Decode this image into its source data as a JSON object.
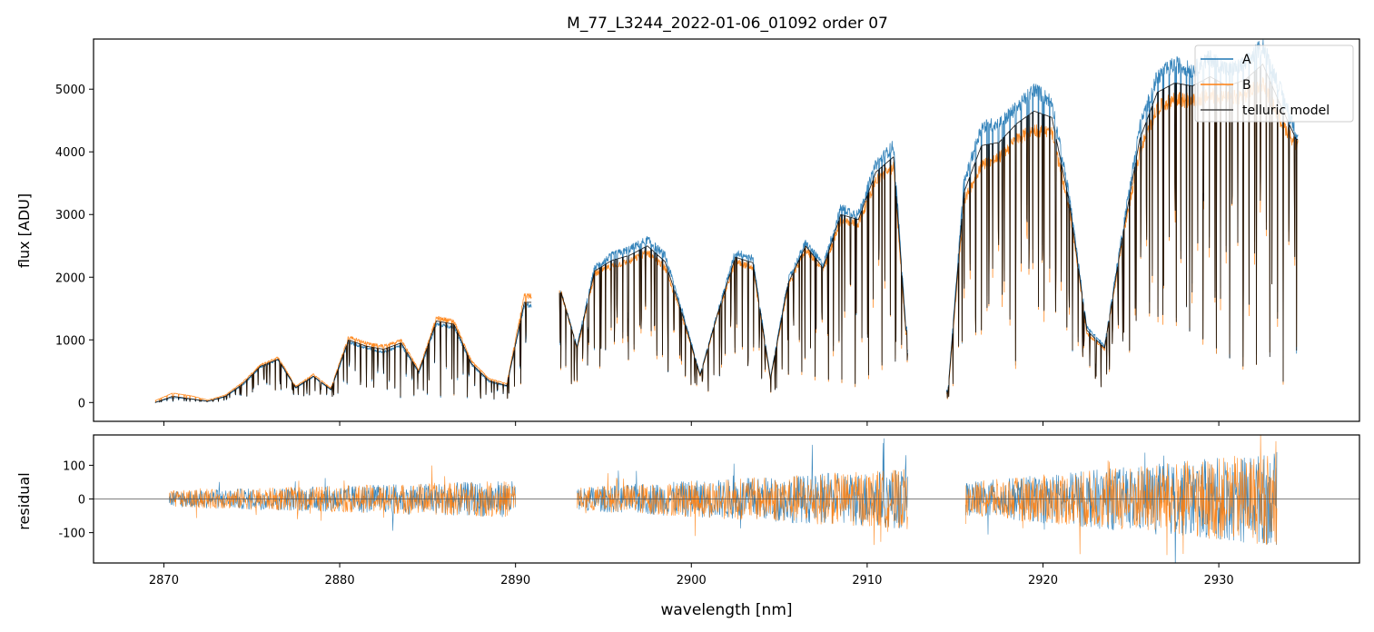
{
  "title": "M_77_L3244_2022-01-06_01092  order 07",
  "colors": {
    "A": "#1f77b4",
    "B": "#ff7f0e",
    "model": "#000000",
    "zero": "#555555"
  },
  "chart_data": [
    {
      "type": "line",
      "panel": "flux",
      "title": "M_77_L3244_2022-01-06_01092  order 07",
      "xlabel": "",
      "ylabel": "flux [ADU]",
      "xlim": [
        2866,
        2938
      ],
      "ylim": [
        -300,
        5800
      ],
      "xticks": [
        2870,
        2880,
        2890,
        2900,
        2910,
        2920,
        2930
      ],
      "yticks": [
        0,
        1000,
        2000,
        3000,
        4000,
        5000
      ],
      "legend": {
        "position": "top-right",
        "entries": [
          "A",
          "B",
          "telluric model"
        ]
      },
      "series": [
        {
          "name": "A",
          "color": "#1f77b4",
          "width": 0.8
        },
        {
          "name": "B",
          "color": "#ff7f0e",
          "width": 0.8
        },
        {
          "name": "telluric model",
          "color": "#000000",
          "width": 0.9
        }
      ],
      "segments": [
        {
          "x0": 2869.5,
          "x1": 2890.9,
          "rows": [
            [
              2869.5,
              0,
              30,
              0
            ],
            [
              2870.5,
              80,
              150,
              100
            ],
            [
              2871.5,
              60,
              110,
              60
            ],
            [
              2872.5,
              20,
              40,
              20
            ],
            [
              2873.5,
              90,
              120,
              100
            ],
            [
              2874.5,
              280,
              330,
              300
            ],
            [
              2875.5,
              560,
              600,
              580
            ],
            [
              2876.5,
              680,
              720,
              690
            ],
            [
              2877.5,
              230,
              260,
              240
            ],
            [
              2878.5,
              410,
              450,
              420
            ],
            [
              2879.5,
              200,
              230,
              210
            ],
            [
              2880.5,
              960,
              1050,
              1000
            ],
            [
              2881.5,
              870,
              950,
              900
            ],
            [
              2882.5,
              800,
              900,
              850
            ],
            [
              2883.5,
              910,
              1000,
              950
            ],
            [
              2884.5,
              470,
              520,
              490
            ],
            [
              2885.5,
              1250,
              1350,
              1300
            ],
            [
              2886.5,
              1200,
              1300,
              1250
            ],
            [
              2887.5,
              600,
              660,
              620
            ],
            [
              2888.5,
              330,
              380,
              350
            ],
            [
              2889.5,
              260,
              300,
              270
            ],
            [
              2890.5,
              1550,
              1700,
              1600
            ]
          ]
        },
        {
          "x0": 2892.5,
          "x1": 2912.3,
          "rows": [
            [
              2892.6,
              1750,
              1750,
              1750
            ],
            [
              2893.5,
              900,
              850,
              870
            ],
            [
              2894.5,
              2150,
              2050,
              2100
            ],
            [
              2895.5,
              2350,
              2180,
              2270
            ],
            [
              2896.5,
              2450,
              2250,
              2350
            ],
            [
              2897.5,
              2600,
              2400,
              2500
            ],
            [
              2898.5,
              2350,
              2150,
              2250
            ],
            [
              2899.5,
              1450,
              1350,
              1400
            ],
            [
              2900.5,
              450,
              420,
              430
            ],
            [
              2901.5,
              1450,
              1400,
              1420
            ],
            [
              2902.5,
              2400,
              2250,
              2320
            ],
            [
              2903.5,
              2300,
              2150,
              2230
            ],
            [
              2904.5,
              400,
              360,
              380
            ],
            [
              2905.5,
              1950,
              1850,
              1900
            ],
            [
              2906.5,
              2550,
              2450,
              2500
            ],
            [
              2907.5,
              2200,
              2100,
              2150
            ],
            [
              2908.5,
              3100,
              2900,
              3000
            ],
            [
              2909.5,
              3000,
              2850,
              2920
            ],
            [
              2910.5,
              3800,
              3550,
              3680
            ],
            [
              2911.5,
              4100,
              3750,
              3920
            ],
            [
              2912.2,
              1200,
              1100,
              1150
            ]
          ]
        },
        {
          "x0": 2914.5,
          "x1": 2934.5,
          "rows": [
            [
              2914.6,
              200,
              150,
              180
            ],
            [
              2915.5,
              3500,
              3200,
              3350
            ],
            [
              2916.5,
              4400,
              3800,
              4100
            ],
            [
              2917.5,
              4450,
              3900,
              4150
            ],
            [
              2918.5,
              4700,
              4200,
              4450
            ],
            [
              2919.5,
              5000,
              4350,
              4650
            ],
            [
              2920.5,
              4800,
              4300,
              4550
            ],
            [
              2921.5,
              3300,
              3100,
              3200
            ],
            [
              2922.5,
              1200,
              1100,
              1150
            ],
            [
              2923.5,
              900,
              850,
              870
            ],
            [
              2924.5,
              2700,
              2550,
              2620
            ],
            [
              2925.5,
              4400,
              4000,
              4200
            ],
            [
              2926.5,
              5200,
              4700,
              4950
            ],
            [
              2927.5,
              5400,
              4850,
              5100
            ],
            [
              2928.5,
              5300,
              4800,
              5050
            ],
            [
              2929.5,
              5500,
              4900,
              5200
            ],
            [
              2930.5,
              5300,
              4850,
              5050
            ],
            [
              2931.5,
              5400,
              4900,
              5150
            ],
            [
              2932.5,
              5700,
              5100,
              5400
            ],
            [
              2933.5,
              5000,
              4500,
              4750
            ],
            [
              2934.4,
              4300,
              4100,
              4200
            ]
          ]
        }
      ]
    },
    {
      "type": "line",
      "panel": "residual",
      "xlabel": "wavelength [nm]",
      "ylabel": "residual",
      "xlim": [
        2866,
        2938
      ],
      "ylim": [
        -190,
        190
      ],
      "xticks": [
        2870,
        2880,
        2890,
        2900,
        2910,
        2920,
        2930
      ],
      "yticks": [
        -100,
        0,
        100
      ],
      "zero_line": 0,
      "series": [
        {
          "name": "A",
          "color": "#1f77b4",
          "width": 0.6
        },
        {
          "name": "B",
          "color": "#ff7f0e",
          "width": 0.6
        }
      ],
      "segments": [
        {
          "x0": 2870.3,
          "x1": 2890.0,
          "amp": [
            25,
            55
          ]
        },
        {
          "x0": 2893.5,
          "x1": 2912.3,
          "amp": [
            35,
            90
          ]
        },
        {
          "x0": 2915.6,
          "x1": 2933.3,
          "amp": [
            50,
            140
          ]
        }
      ]
    }
  ]
}
